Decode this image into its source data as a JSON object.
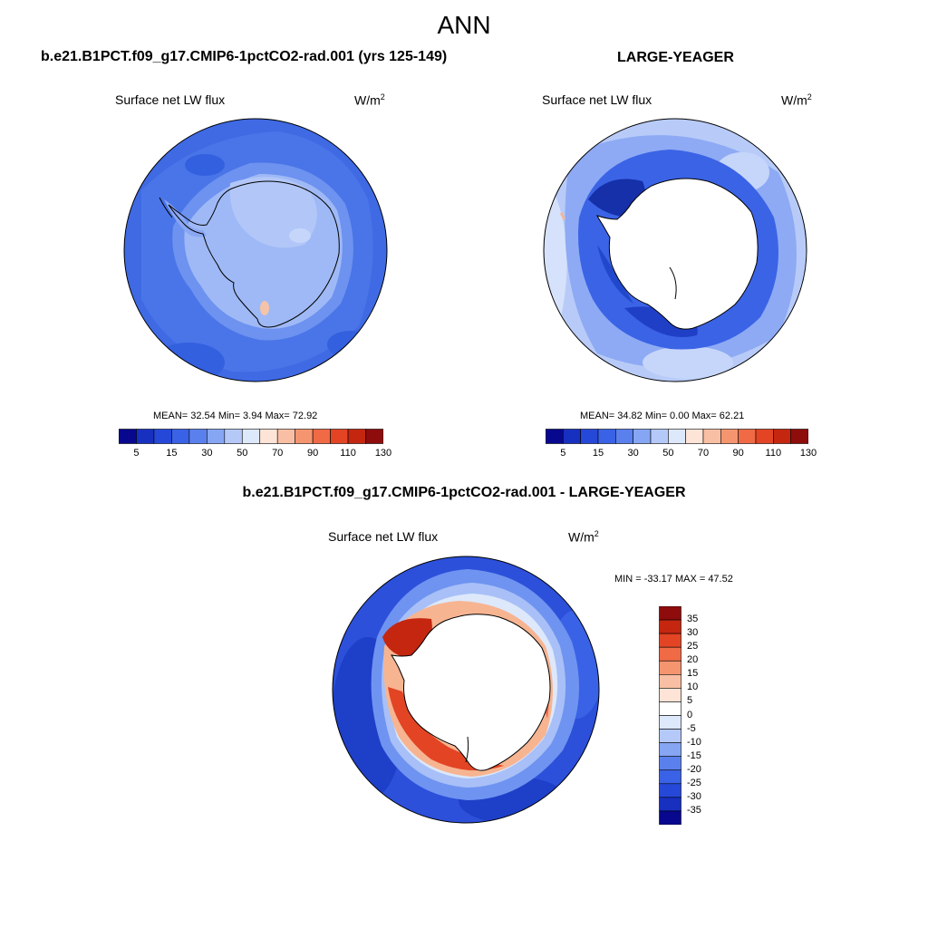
{
  "figure": {
    "title": "ANN"
  },
  "panels": [
    {
      "title": "b.e21.B1PCT.f09_g17.CMIP6-1pctCO2-rad.001 (yrs 125-149)",
      "variable": "Surface net LW flux",
      "units_base": "W/m",
      "units_exp": "2",
      "stats": "MEAN=  32.54  Min=   3.94  Max=  72.92"
    },
    {
      "title": "LARGE-YEAGER",
      "variable": "Surface net LW flux",
      "units_base": "W/m",
      "units_exp": "2",
      "stats": "MEAN=  34.82  Min=   0.00  Max=  62.21"
    },
    {
      "title": "b.e21.B1PCT.f09_g17.CMIP6-1pctCO2-rad.001 - LARGE-YEAGER",
      "variable": "Surface net LW flux",
      "units_base": "W/m",
      "units_exp": "2",
      "stats": "MIN = -33.17 MAX =  47.52"
    }
  ],
  "colorbar_abs": {
    "colors": [
      "#08088e",
      "#1730c0",
      "#2648d8",
      "#3a62e6",
      "#5a80ee",
      "#86a6f4",
      "#b4c9f8",
      "#dde8fb",
      "#fde4d6",
      "#f9bfa4",
      "#f5956f",
      "#ef6a45",
      "#e34424",
      "#c52610",
      "#8e0c0c"
    ],
    "ticks": [
      "5",
      "15",
      "30",
      "50",
      "70",
      "90",
      "110",
      "130"
    ]
  },
  "colorbar_diff": {
    "colors": [
      "#08088e",
      "#1730c0",
      "#2648d8",
      "#3a62e6",
      "#5a80ee",
      "#86a6f4",
      "#b4c9f8",
      "#dde8fb",
      "#fde4d6",
      "#f9bfa4",
      "#f5956f",
      "#ef6a45",
      "#e34424",
      "#c52610",
      "#8e0c0c"
    ],
    "ticks": [
      "35",
      "30",
      "25",
      "20",
      "15",
      "10",
      "5",
      "0",
      "-5",
      "-10",
      "-15",
      "-20",
      "-25",
      "-30",
      "-35"
    ]
  }
}
